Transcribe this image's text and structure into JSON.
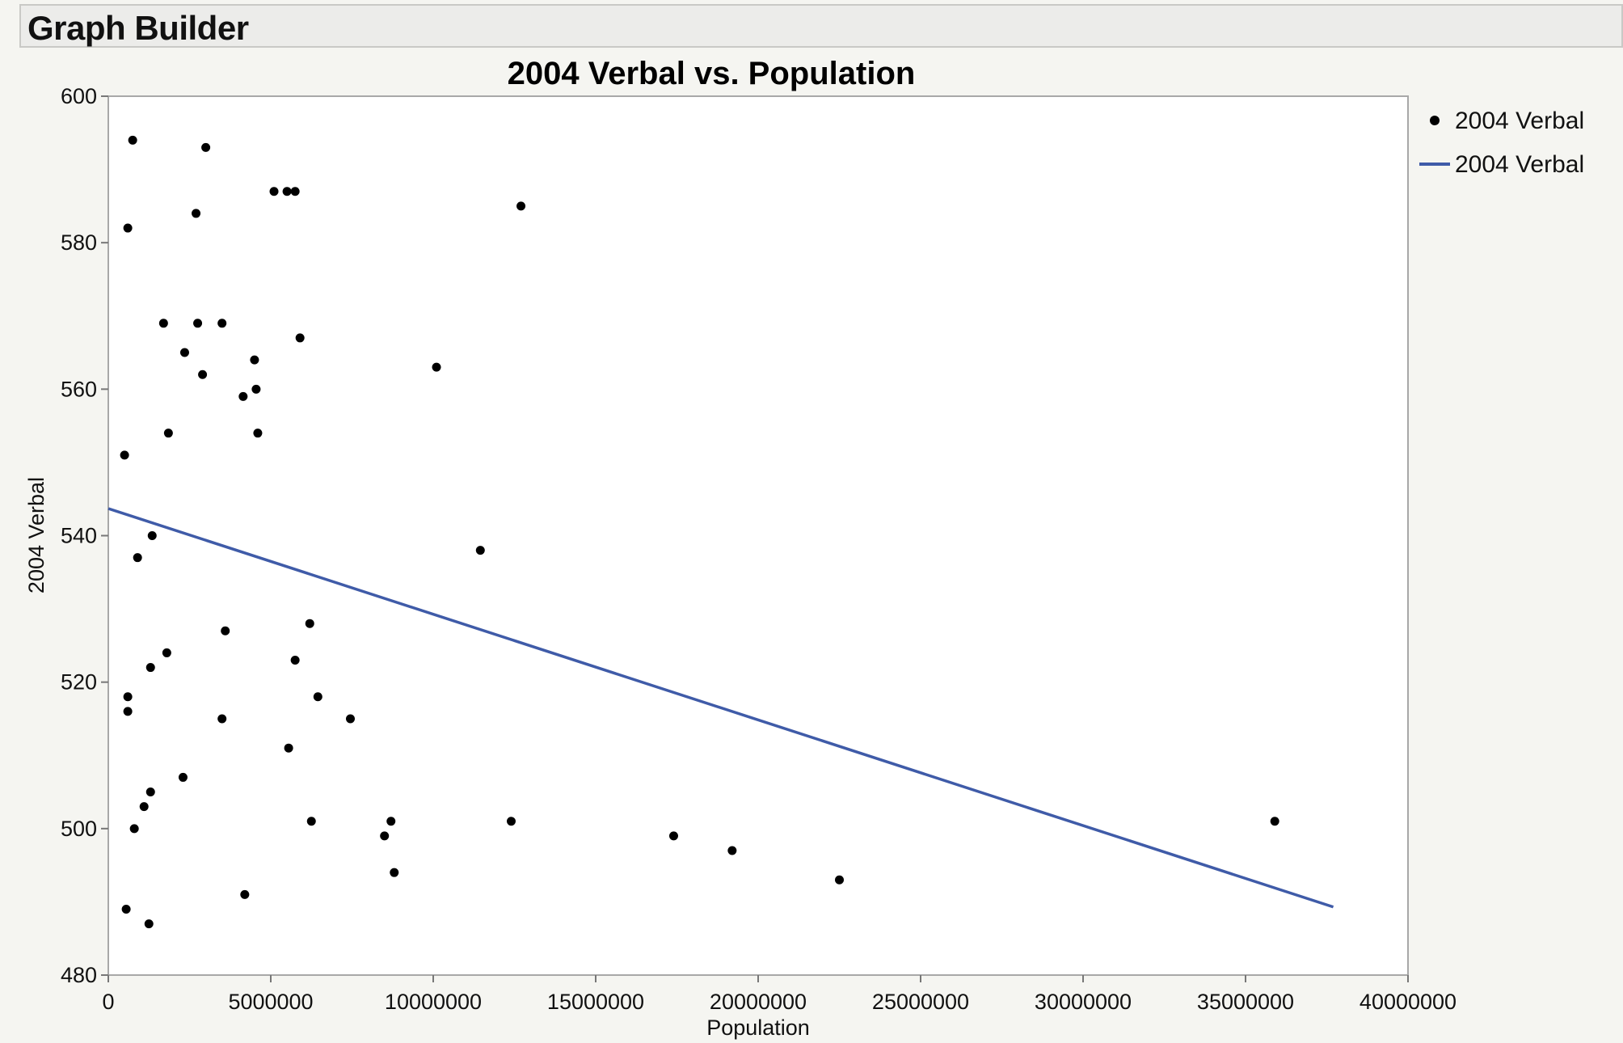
{
  "header": {
    "title": "Graph Builder"
  },
  "colors": {
    "line": "#3f5ba8",
    "point": "#000000",
    "plot_bg": "#ffffff",
    "page_bg": "#f5f5f1"
  },
  "chart_data": {
    "type": "scatter",
    "title": "2004 Verbal vs. Population",
    "xlabel": "Population",
    "ylabel": "2004 Verbal",
    "xlim": [
      0,
      40000000
    ],
    "ylim": [
      480,
      600
    ],
    "xticks": [
      0,
      5000000,
      10000000,
      15000000,
      20000000,
      25000000,
      30000000,
      35000000,
      40000000
    ],
    "xtick_labels": [
      "0",
      "5000000",
      "10000000",
      "15000000",
      "20000000",
      "25000000",
      "30000000",
      "35000000",
      "40000000"
    ],
    "yticks": [
      480,
      500,
      520,
      540,
      560,
      580,
      600
    ],
    "ytick_labels": [
      "480",
      "500",
      "520",
      "540",
      "560",
      "580",
      "600"
    ],
    "grid": false,
    "legend": {
      "position": "right",
      "entries": [
        {
          "label": "2004 Verbal",
          "marker": "point"
        },
        {
          "label": "2004 Verbal",
          "marker": "line"
        }
      ]
    },
    "series": [
      {
        "name": "2004 Verbal",
        "kind": "points",
        "points": [
          [
            750000,
            594
          ],
          [
            3000000,
            593
          ],
          [
            600000,
            582
          ],
          [
            5100000,
            587
          ],
          [
            5500000,
            587
          ],
          [
            5750000,
            587
          ],
          [
            2700000,
            584
          ],
          [
            12700000,
            585
          ],
          [
            1700000,
            569
          ],
          [
            2750000,
            569
          ],
          [
            3500000,
            569
          ],
          [
            5900000,
            567
          ],
          [
            2350000,
            565
          ],
          [
            4500000,
            564
          ],
          [
            2900000,
            562
          ],
          [
            4550000,
            560
          ],
          [
            4150000,
            559
          ],
          [
            10100000,
            563
          ],
          [
            1850000,
            554
          ],
          [
            4600000,
            554
          ],
          [
            500000,
            551
          ],
          [
            1350000,
            540
          ],
          [
            900000,
            537
          ],
          [
            11450000,
            538
          ],
          [
            3600000,
            527
          ],
          [
            6200000,
            528
          ],
          [
            1800000,
            524
          ],
          [
            5750000,
            523
          ],
          [
            1300000,
            522
          ],
          [
            600000,
            518
          ],
          [
            6450000,
            518
          ],
          [
            600000,
            516
          ],
          [
            3500000,
            515
          ],
          [
            7450000,
            515
          ],
          [
            5550000,
            511
          ],
          [
            2300000,
            507
          ],
          [
            1300000,
            505
          ],
          [
            1100000,
            503
          ],
          [
            800000,
            500
          ],
          [
            6250000,
            501
          ],
          [
            8700000,
            501
          ],
          [
            12400000,
            501
          ],
          [
            35900000,
            501
          ],
          [
            8500000,
            499
          ],
          [
            17400000,
            499
          ],
          [
            19200000,
            497
          ],
          [
            8800000,
            494
          ],
          [
            22500000,
            493
          ],
          [
            4200000,
            491
          ],
          [
            550000,
            489
          ],
          [
            1250000,
            487
          ]
        ]
      },
      {
        "name": "2004 Verbal",
        "kind": "fit-line",
        "points": [
          [
            0,
            543.7
          ],
          [
            37700000,
            489.3
          ]
        ]
      }
    ]
  }
}
